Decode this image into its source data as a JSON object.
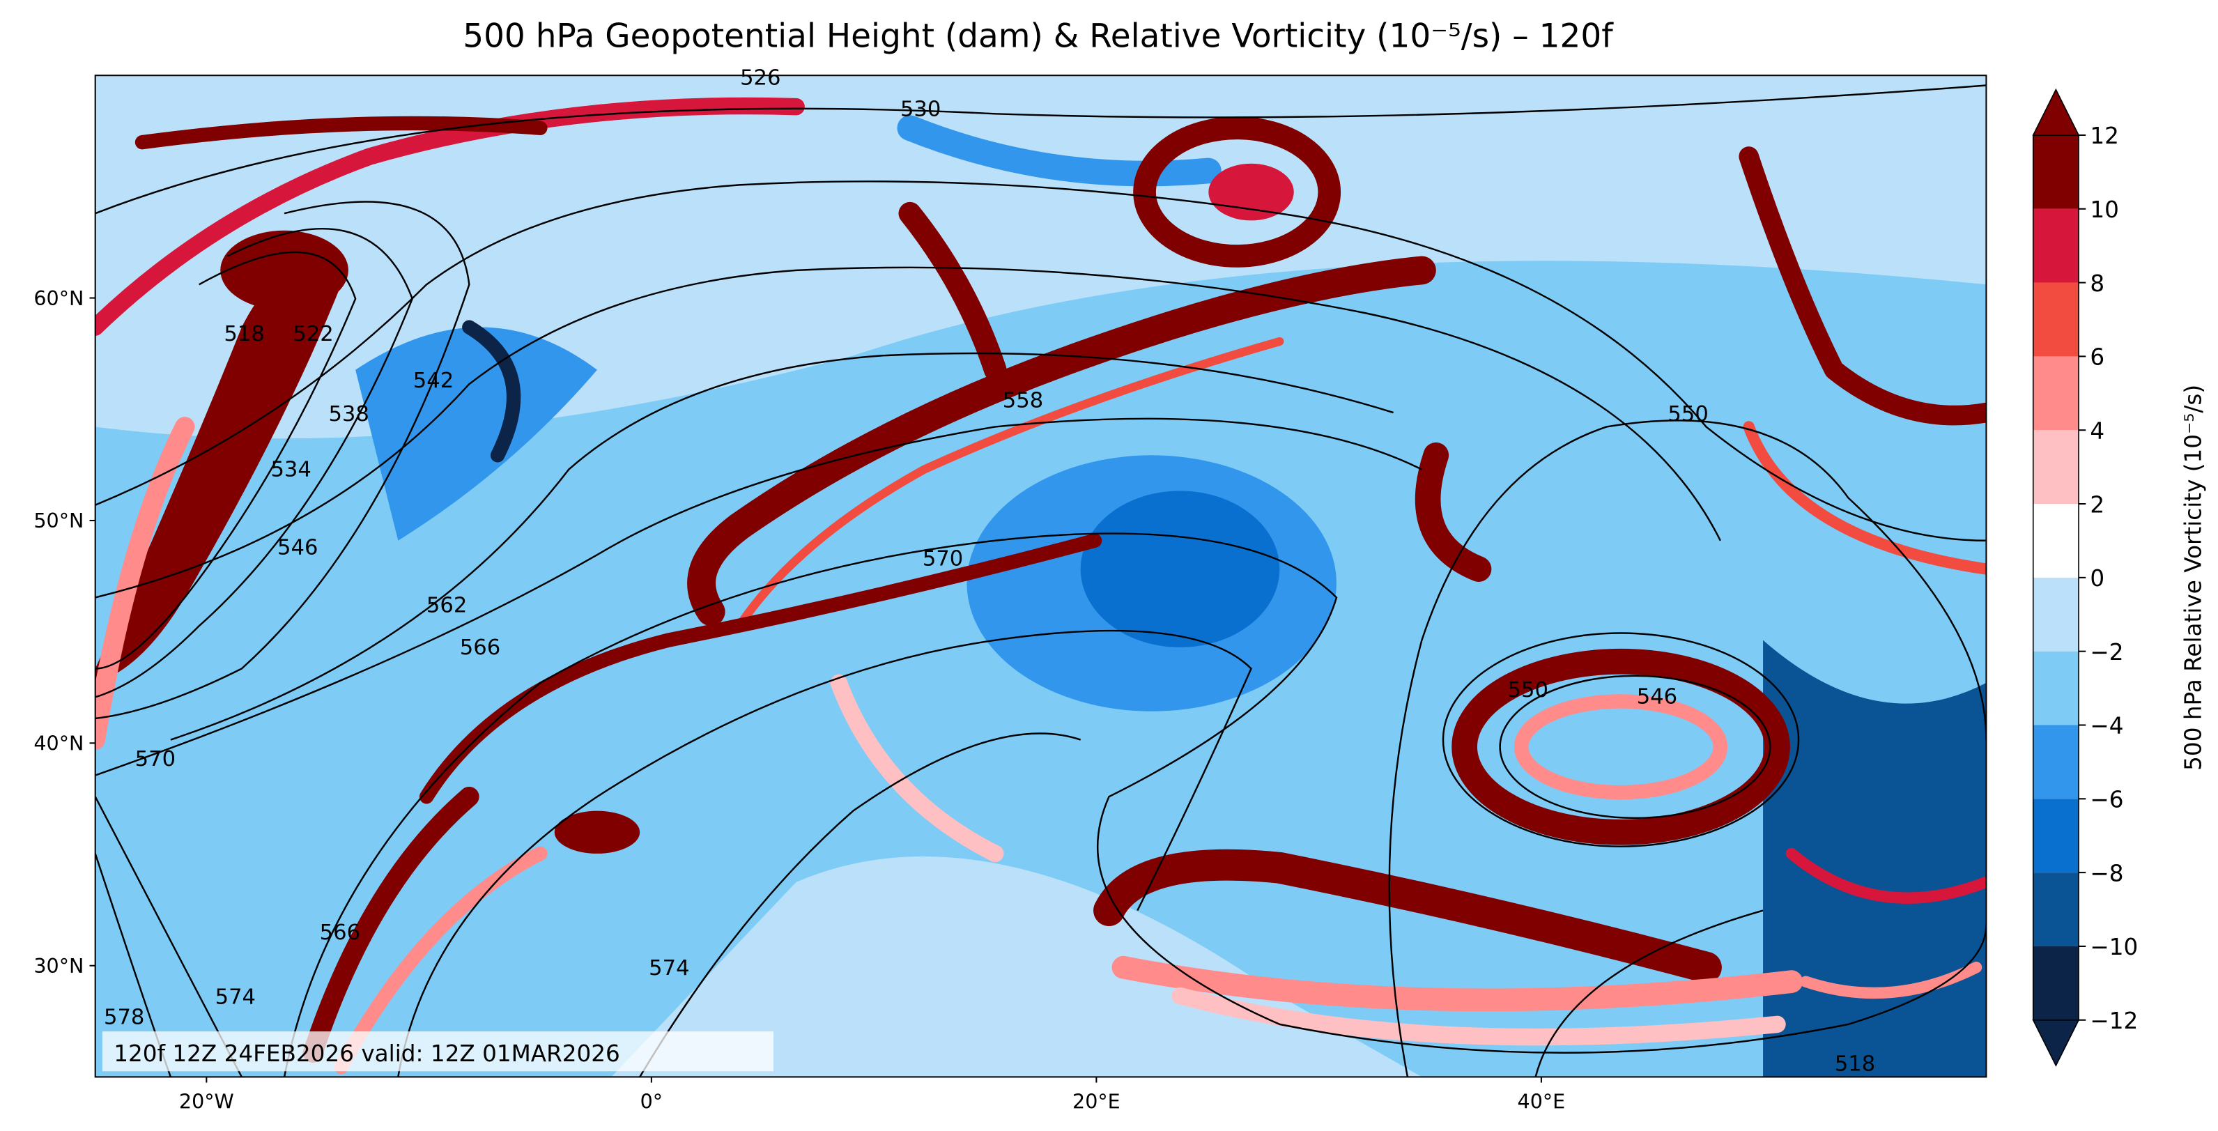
{
  "title": "500 hPa Geopotential Height (dam) & Relative Vorticity (10⁻⁵/s) – 120f",
  "info": "120f 12Z 24FEB2026 valid: 12Z 01MAR2026",
  "map": {
    "xlim": [
      -25,
      60
    ],
    "ylim": [
      25,
      70
    ],
    "xticks": [
      {
        "value": -20,
        "label": "20°W"
      },
      {
        "value": 0,
        "label": "0°"
      },
      {
        "value": 20,
        "label": "20°E"
      },
      {
        "value": 40,
        "label": "40°E"
      }
    ],
    "yticks": [
      {
        "value": 60,
        "label": "60°N"
      },
      {
        "value": 50,
        "label": "50°N"
      },
      {
        "value": 40,
        "label": "40°N"
      },
      {
        "value": 30,
        "label": "30°N"
      }
    ],
    "contour_labels": [
      {
        "value": 526,
        "lon": 4.9,
        "lat": 69.9
      },
      {
        "value": 530,
        "lon": 12.1,
        "lat": 68.5
      },
      {
        "value": 558,
        "lon": 16.7,
        "lat": 55.4
      },
      {
        "value": 550,
        "lon": 46.6,
        "lat": 54.8
      },
      {
        "value": 534,
        "lon": -16.2,
        "lat": 52.3
      },
      {
        "value": 538,
        "lon": -13.6,
        "lat": 54.8
      },
      {
        "value": 542,
        "lon": -9.8,
        "lat": 56.3
      },
      {
        "value": 546,
        "lon": -15.9,
        "lat": 48.8
      },
      {
        "value": 562,
        "lon": -9.2,
        "lat": 46.2
      },
      {
        "value": 566,
        "lon": -7.7,
        "lat": 44.3
      },
      {
        "value": 570,
        "lon": 13.1,
        "lat": 48.3
      },
      {
        "value": 570,
        "lon": -22.3,
        "lat": 39.3
      },
      {
        "value": 550,
        "lon": 39.4,
        "lat": 42.4
      },
      {
        "value": 546,
        "lon": 45.2,
        "lat": 42.1
      },
      {
        "value": 566,
        "lon": -14.0,
        "lat": 31.5
      },
      {
        "value": 574,
        "lon": -18.7,
        "lat": 28.6
      },
      {
        "value": 578,
        "lon": -23.7,
        "lat": 27.7
      },
      {
        "value": 574,
        "lon": 0.8,
        "lat": 29.9
      },
      {
        "value": 518,
        "lon": -18.3,
        "lat": 58.4
      },
      {
        "value": 522,
        "lon": -15.2,
        "lat": 58.4
      },
      {
        "value": 518,
        "lon": 54.1,
        "lat": 25.6
      }
    ]
  },
  "colorbar": {
    "label": "500 hPa Relative Vorticity (10⁻⁵/s)",
    "ticks": [
      {
        "value": -12,
        "label": "−12"
      },
      {
        "value": -10,
        "label": "−10"
      },
      {
        "value": -8,
        "label": "−8"
      },
      {
        "value": -6,
        "label": "−6"
      },
      {
        "value": -4,
        "label": "−4"
      },
      {
        "value": -2,
        "label": "−2"
      },
      0,
      2,
      4,
      6,
      8,
      10,
      12
    ],
    "colors": [
      "#0b2448",
      "#0a5394",
      "#0a70d0",
      "#3297ec",
      "#7ecbf6",
      "#bbe1fa",
      "#ffffff",
      "#ffc0c3",
      "#ff8b8b",
      "#f24b3f",
      "#d7163b",
      "#800000"
    ],
    "under_color": "#0b2448",
    "over_color": "#800000"
  }
}
